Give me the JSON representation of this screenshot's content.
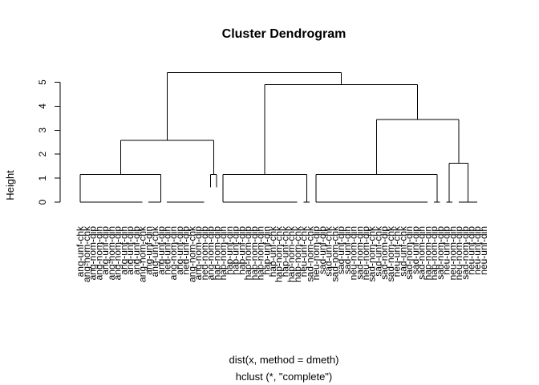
{
  "chart_data": {
    "type": "dendrogram",
    "title": "Cluster Dendrogram",
    "ylabel": "Height",
    "xlabel": "dist(x, method = dmeth)",
    "sub": "hclust (*, \"complete\")",
    "yticks": [
      0,
      1,
      2,
      3,
      4,
      5
    ],
    "ylim": [
      0,
      5.5
    ],
    "leaves": [
      "ang-unf-chk",
      "ang-nom-chk",
      "ang-nom-dip",
      "ang-nom-din",
      "ang-unf-dip",
      "ang-nom-din",
      "ang-nom-dip",
      "ang-unf-din",
      "ang-unf-dip",
      "ang-unf-dip",
      "ang-nom-chk",
      "ang-unf-din",
      "ang-unf-chk",
      "ang-unf-dip",
      "neu-unf-din",
      "ang-nom-din",
      "ang-unf-dip",
      "neu-unf-dip",
      "ang-nom-chk",
      "ang-nom-dip",
      "neu-nom-dip",
      "ang-nom-dip",
      "hap-nom-dip",
      "hap-nom-din",
      "hap-unf-din",
      "hap-unf-dip",
      "hap-unf-dip",
      "hap-nom-dip",
      "hap-nom-dip",
      "hap-nom-din",
      "hap-unf-din",
      "hap-unf-chk",
      "hap-nom-chk",
      "hap-unf-chk",
      "hap-nom-chk",
      "hap-nom-chk",
      "neu-unf-chk",
      "sad-nom-chk",
      "neu-nom-dip",
      "sad-unf-dip",
      "sad-unf-chk",
      "sad-nom-chk",
      "sad-unf-dip",
      "sad-unf-din",
      "neu-nom-din",
      "sad-nom-din",
      "neu-nom-dip",
      "sad-nom-chk",
      "sad-unf-chk",
      "sad-nom-dip",
      "sad-nom-chk",
      "neu-unf-chk",
      "sad-unf-chk",
      "sad-nom-din",
      "sad-unf-dip",
      "sad-nom-din",
      "hap-nom-din",
      "hap-nom-dip",
      "sad-nom-dip",
      "neu-unf-dip",
      "neu-nom-din",
      "neu-nom-dip",
      "sad-nom-dip",
      "neu-unf-dip",
      "neu-unf-dip",
      "neu-unf-din"
    ],
    "merges": [
      {
        "left": [
          0,
          13
        ],
        "right": [
          14,
          20
        ],
        "height": 2.58
      },
      {
        "left": [
          0,
          13
        ],
        "height": 1.15
      },
      {
        "left": [
          14,
          20
        ],
        "height": 0.62
      },
      {
        "left": [
          21,
          22
        ],
        "height": 1.15
      },
      {
        "left": [
          23,
          64
        ],
        "height": 4.9
      },
      {
        "left": [
          23,
          37
        ],
        "height": 1.15
      },
      {
        "left": [
          38,
          64
        ],
        "height": 3.45
      },
      {
        "left": [
          38,
          58
        ],
        "height": 1.15
      },
      {
        "left": [
          59,
          64
        ],
        "height": 1.62
      },
      {
        "root": true,
        "height": 5.4
      }
    ]
  }
}
